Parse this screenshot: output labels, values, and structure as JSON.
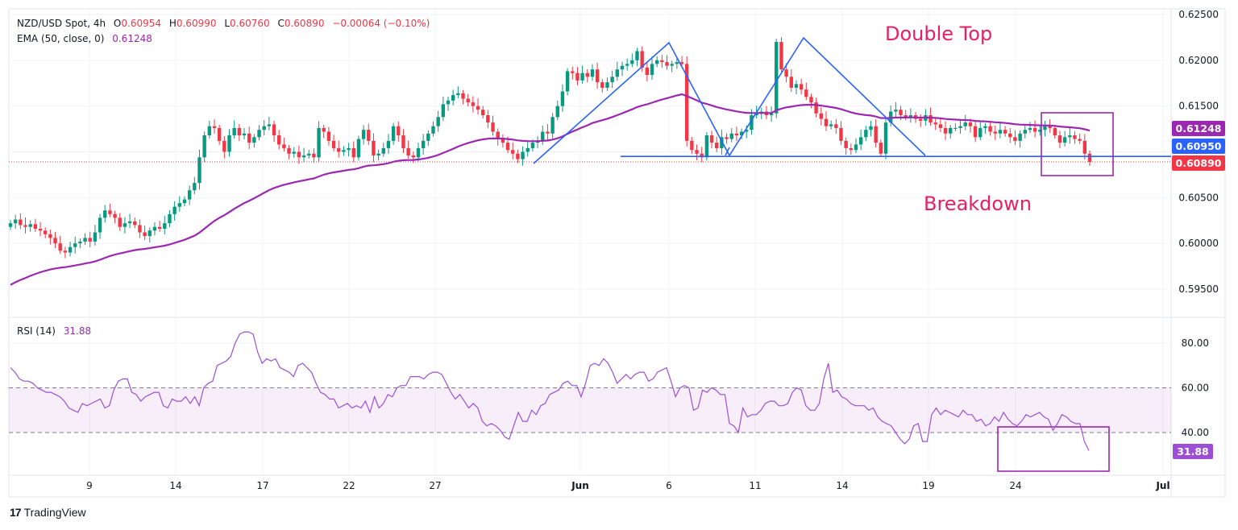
{
  "header": {
    "symbol": "NZD/USD Spot, 4h",
    "open_prefix": "O",
    "open": "0.60954",
    "high_prefix": "H",
    "high": "0.60990",
    "low_prefix": "L",
    "low": "0.60760",
    "close_prefix": "C",
    "close": "0.60890",
    "change": "−0.00064 (−0.10%)",
    "ema_label": "EMA (50, close, 0)",
    "ema_value": "0.61248"
  },
  "rsi_header": {
    "label": "RSI (14)",
    "value": "31.88"
  },
  "annotations": {
    "double_top": "Double Top",
    "breakdown": "Breakdown"
  },
  "price_tags": {
    "ema": "0.61248",
    "neckline": "0.60950",
    "last": "0.60890"
  },
  "rsi_tag": "31.88",
  "branding": {
    "logo_mark": "17",
    "name": "TradingView"
  },
  "colors": {
    "up": "#089981",
    "down": "#f23645",
    "ema": "#9c27b0",
    "trend": "#2962ff",
    "rsi": "#9c4fd6",
    "annotation": "#e91e63",
    "box": "#9c27b0"
  },
  "chart_data": [
    {
      "type": "candlestick",
      "title": "NZD/USD Spot, 4h",
      "xlabel": "",
      "ylabel": "Price",
      "ylim": [
        0.5925,
        0.626
      ],
      "y_ticks": [
        "0.62500",
        "0.62000",
        "0.61500",
        "0.61000",
        "0.60500",
        "0.60000",
        "0.59500"
      ],
      "x_ticks": [
        "9",
        "14",
        "17",
        "22",
        "27",
        "Jun",
        "6",
        "11",
        "14",
        "19",
        "24",
        "Jul"
      ],
      "closes": [
        0.6022,
        0.6026,
        0.602,
        0.6018,
        0.6021,
        0.6016,
        0.6014,
        0.601,
        0.6006,
        0.6,
        0.5992,
        0.599,
        0.5996,
        0.6,
        0.6002,
        0.6006,
        0.6002,
        0.6012,
        0.6028,
        0.6036,
        0.6032,
        0.6028,
        0.6018,
        0.6022,
        0.6024,
        0.602,
        0.6012,
        0.6008,
        0.6014,
        0.6018,
        0.6016,
        0.6022,
        0.6032,
        0.604,
        0.6044,
        0.6048,
        0.6058,
        0.6066,
        0.6094,
        0.6118,
        0.6128,
        0.6126,
        0.6112,
        0.61,
        0.6118,
        0.6126,
        0.6118,
        0.612,
        0.611,
        0.6116,
        0.6124,
        0.6128,
        0.613,
        0.6118,
        0.6108,
        0.6104,
        0.6098,
        0.61,
        0.6094,
        0.6096,
        0.6098,
        0.6094,
        0.6126,
        0.6122,
        0.6112,
        0.6104,
        0.61,
        0.6102,
        0.6104,
        0.6094,
        0.6114,
        0.6124,
        0.6112,
        0.6096,
        0.6098,
        0.6104,
        0.6112,
        0.6128,
        0.6118,
        0.6104,
        0.6096,
        0.6094,
        0.6104,
        0.6112,
        0.612,
        0.6128,
        0.6138,
        0.6152,
        0.6156,
        0.6162,
        0.6164,
        0.6158,
        0.6154,
        0.615,
        0.6146,
        0.614,
        0.6132,
        0.6122,
        0.6114,
        0.611,
        0.6102,
        0.6098,
        0.6092,
        0.61,
        0.6104,
        0.611,
        0.6112,
        0.6122,
        0.612,
        0.6138,
        0.615,
        0.6166,
        0.6188,
        0.6186,
        0.6178,
        0.6186,
        0.6182,
        0.619,
        0.6176,
        0.617,
        0.6176,
        0.6182,
        0.619,
        0.6194,
        0.6196,
        0.62,
        0.621,
        0.6192,
        0.6184,
        0.6196,
        0.62,
        0.6198,
        0.6194,
        0.6196,
        0.6198,
        0.6196,
        0.6112,
        0.6102,
        0.6098,
        0.6094,
        0.6118,
        0.611,
        0.6104,
        0.6116,
        0.6114,
        0.612,
        0.6118,
        0.6122,
        0.6124,
        0.614,
        0.6142,
        0.6144,
        0.614,
        0.6142,
        0.622,
        0.619,
        0.6182,
        0.617,
        0.6174,
        0.6168,
        0.616,
        0.6154,
        0.6142,
        0.6136,
        0.6128,
        0.613,
        0.6126,
        0.6112,
        0.6104,
        0.6102,
        0.6108,
        0.6116,
        0.6124,
        0.6128,
        0.611,
        0.6098,
        0.6132,
        0.6144,
        0.6146,
        0.614,
        0.6138,
        0.614,
        0.6136,
        0.6134,
        0.614,
        0.6132,
        0.613,
        0.6126,
        0.612,
        0.6126,
        0.6126,
        0.6128,
        0.6132,
        0.6128,
        0.6116,
        0.6126,
        0.6128,
        0.6122,
        0.612,
        0.6124,
        0.612,
        0.6116,
        0.6112,
        0.612,
        0.6124,
        0.6126,
        0.6122,
        0.6124,
        0.6128,
        0.6126,
        0.6118,
        0.611,
        0.6116,
        0.6118,
        0.6114,
        0.6112,
        0.6098,
        0.6089
      ],
      "series": [
        {
          "name": "EMA (50, close, 0)",
          "start": 0.5952,
          "end": 0.61248
        }
      ],
      "horizontal_lines": [
        {
          "name": "neckline",
          "value": 0.6095
        },
        {
          "name": "last-price",
          "value": 0.6089
        }
      ],
      "annotations": [
        "Double Top",
        "Breakdown"
      ]
    },
    {
      "type": "line",
      "title": "RSI (14)",
      "ylim": [
        23,
        91
      ],
      "y_ticks": [
        "80.00",
        "60.00",
        "40.00"
      ],
      "band": [
        40,
        60
      ],
      "values": [
        69,
        67,
        64,
        63,
        63,
        62,
        60,
        59,
        58,
        58,
        57,
        56,
        54,
        51,
        50,
        49,
        53,
        52,
        53,
        54,
        55,
        51,
        52,
        59,
        63,
        64,
        64,
        58,
        57,
        54,
        56,
        57,
        58,
        58,
        52,
        51,
        55,
        54,
        54,
        56,
        53,
        56,
        52,
        60,
        62,
        63,
        70,
        71,
        72,
        74,
        80,
        84,
        85,
        85,
        84,
        76,
        71,
        73,
        72,
        73,
        69,
        68,
        67,
        65,
        70,
        71,
        69,
        67,
        62,
        58,
        57,
        55,
        55,
        51,
        52,
        53,
        51,
        52,
        51,
        54,
        49,
        56,
        51,
        53,
        57,
        56,
        60,
        61,
        61,
        65,
        65,
        65,
        64,
        66,
        67,
        67,
        66,
        62,
        58,
        55,
        57,
        54,
        51,
        53,
        51,
        45,
        43,
        44,
        43,
        41,
        38,
        37,
        43,
        49,
        45,
        45,
        50,
        48,
        52,
        53,
        57,
        58,
        59,
        62,
        63,
        61,
        61,
        56,
        62,
        70,
        71,
        70,
        73,
        71,
        67,
        62,
        64,
        66,
        64,
        66,
        67,
        67,
        63,
        64,
        67,
        68,
        69,
        63,
        56,
        60,
        61,
        60,
        50,
        51,
        59,
        58,
        60,
        59,
        57,
        57,
        44,
        43,
        40,
        51,
        47,
        48,
        48,
        50,
        53,
        54,
        54,
        52,
        52,
        53,
        58,
        60,
        59,
        52,
        50,
        50,
        53,
        64,
        71,
        58,
        59,
        56,
        55,
        53,
        52,
        52,
        52,
        50,
        51,
        47,
        45,
        44,
        43,
        40,
        37,
        35,
        37,
        43,
        44,
        36,
        36,
        48,
        51,
        48,
        50,
        49,
        48,
        47,
        50,
        48,
        48,
        45,
        46,
        43,
        44,
        47,
        45,
        49,
        46,
        44,
        43,
        45,
        48,
        47,
        48,
        49,
        47,
        46,
        41,
        44,
        48,
        47,
        45,
        44,
        44,
        36,
        31.88
      ]
    }
  ]
}
